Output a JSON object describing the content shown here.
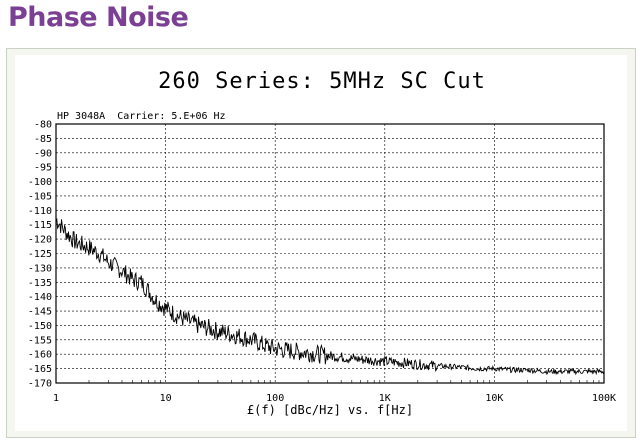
{
  "heading": "Phase Noise",
  "chart_data": {
    "type": "line",
    "title": "260 Series: 5MHz SC Cut",
    "subtitle": "HP 3048A  Carrier: 5.E+06 Hz",
    "xlabel": "£(f) [dBc/Hz] vs. f[Hz]",
    "ylabel": "",
    "xscale": "log",
    "xlim": [
      1,
      100000
    ],
    "ylim": [
      -170,
      -80
    ],
    "grid": true,
    "x_ticks": [
      {
        "value": 1,
        "label": "1"
      },
      {
        "value": 10,
        "label": "10"
      },
      {
        "value": 100,
        "label": "100"
      },
      {
        "value": 1000,
        "label": "1K"
      },
      {
        "value": 10000,
        "label": "10K"
      },
      {
        "value": 100000,
        "label": "100K"
      }
    ],
    "y_ticks": [
      -80,
      -85,
      -90,
      -95,
      -100,
      -105,
      -110,
      -115,
      -120,
      -125,
      -130,
      -135,
      -140,
      -145,
      -150,
      -155,
      -160,
      -165,
      -170
    ],
    "series": [
      {
        "color": "#000000",
        "x": [
          1,
          1.2,
          1.5,
          2,
          2.5,
          3,
          4,
          5,
          6,
          7,
          8,
          10,
          12,
          15,
          20,
          25,
          30,
          40,
          50,
          60,
          70,
          80,
          100,
          120,
          150,
          200,
          250,
          300,
          400,
          500,
          700,
          1000,
          1500,
          2000,
          3000,
          5000,
          7000,
          10000,
          15000,
          20000,
          30000,
          50000,
          70000,
          100000
        ],
        "values": [
          -113,
          -117,
          -121,
          -123,
          -125,
          -128,
          -131,
          -134,
          -135,
          -138,
          -141,
          -144,
          -146,
          -148,
          -150,
          -151,
          -152,
          -153,
          -154,
          -155,
          -156,
          -157,
          -158,
          -158.5,
          -159,
          -159.5,
          -160,
          -160.5,
          -161,
          -161.5,
          -162,
          -162.5,
          -163,
          -163.5,
          -164,
          -164.5,
          -165,
          -165,
          -165.5,
          -165.5,
          -166,
          -166,
          -166,
          -166
        ]
      }
    ]
  }
}
